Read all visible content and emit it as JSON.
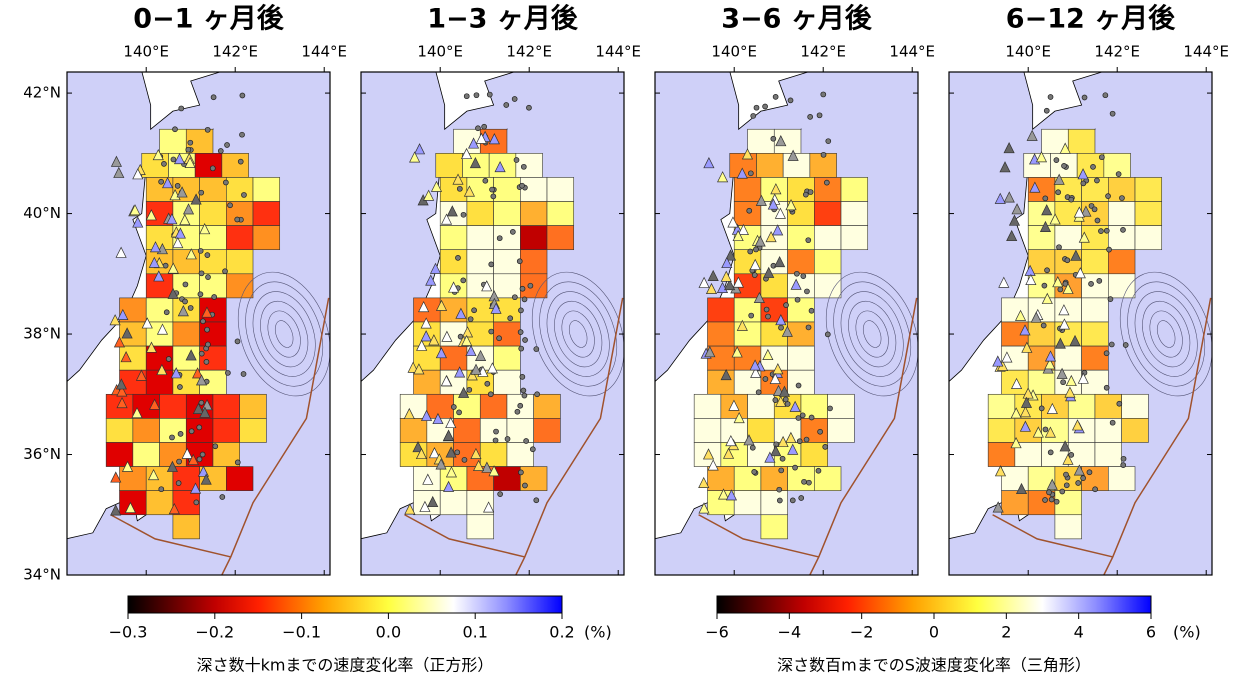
{
  "panels": [
    {
      "title": "0−1 ヶ月後"
    },
    {
      "title": "1−3 ヶ月後"
    },
    {
      "title": "3−6 ヶ月後"
    },
    {
      "title": "6−12 ヶ月後"
    }
  ],
  "lon_ticks": [
    {
      "value": 140,
      "label": "140°E"
    },
    {
      "value": 142,
      "label": "142°E"
    },
    {
      "value": 144,
      "label": "144°E"
    }
  ],
  "lat_ticks": [
    {
      "value": 42,
      "label": "42°N"
    },
    {
      "value": 40,
      "label": "40°N"
    },
    {
      "value": 38,
      "label": "38°N"
    },
    {
      "value": 36,
      "label": "36°N"
    },
    {
      "value": 34,
      "label": "34°N"
    }
  ],
  "colorbars": [
    {
      "range": [
        -0.3,
        0.2
      ],
      "ticks": [
        {
          "value": -0.3,
          "label": "−0.3"
        },
        {
          "value": -0.2,
          "label": "−0.2"
        },
        {
          "value": -0.1,
          "label": "−0.1"
        },
        {
          "value": 0,
          "label": "0.0"
        },
        {
          "value": 0.1,
          "label": "0.1"
        },
        {
          "value": 0.2,
          "label": "0.2"
        }
      ],
      "unit": "(%)",
      "label": "深さ数十kmまでの速度変化率（正方形）"
    },
    {
      "range": [
        -6,
        6
      ],
      "ticks": [
        {
          "value": -6,
          "label": "−6"
        },
        {
          "value": -4,
          "label": "−4"
        },
        {
          "value": -2,
          "label": "−2"
        },
        {
          "value": 0,
          "label": "0"
        },
        {
          "value": 2,
          "label": "2"
        },
        {
          "value": 4,
          "label": "4"
        },
        {
          "value": 6,
          "label": "6"
        }
      ],
      "unit": "(%)",
      "label": "深さ数百mまでのS波速度変化率（三角形）"
    }
  ]
}
